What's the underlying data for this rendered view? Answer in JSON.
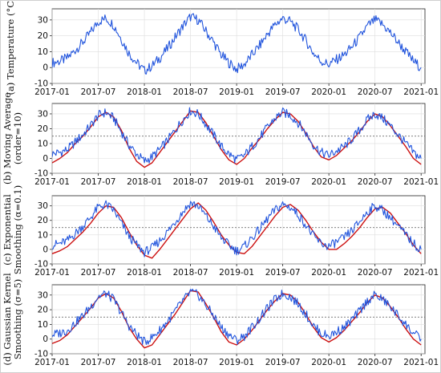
{
  "chart_data": [
    {
      "type": "line",
      "panel": "a",
      "ylabel": [
        "(a) Temperature (°C)"
      ],
      "yticks": [
        -10,
        0,
        10,
        20,
        30
      ],
      "ylim": [
        -10,
        37
      ],
      "xticks": [
        "2017-01",
        "2017-07",
        "2018-01",
        "2018-07",
        "2019-01",
        "2019-07",
        "2020-01",
        "2020-07",
        "2021-01"
      ],
      "xlim": [
        0,
        48.5
      ],
      "grid": true,
      "series": [
        {
          "role": "observed",
          "color": "#2255dd",
          "x": [
            0,
            1,
            2,
            3,
            4,
            5,
            6,
            7,
            8,
            9,
            10,
            11,
            12,
            13,
            14,
            15,
            16,
            17,
            18,
            19,
            20,
            21,
            22,
            23,
            24,
            25,
            26,
            27,
            28,
            29,
            30,
            31,
            32,
            33,
            34,
            35,
            36,
            37,
            38,
            39,
            40,
            41,
            42,
            43,
            44,
            45,
            46,
            47,
            48
          ],
          "values": [
            3,
            4,
            6,
            11,
            16,
            22,
            29,
            31,
            27,
            18,
            9,
            3,
            -2,
            1,
            6,
            12,
            19,
            26,
            32,
            30,
            23,
            16,
            8,
            3,
            -1,
            2,
            8,
            14,
            21,
            27,
            31,
            29,
            24,
            17,
            9,
            4,
            2,
            5,
            8,
            13,
            19,
            26,
            30,
            27,
            22,
            16,
            10,
            4,
            0
          ]
        }
      ]
    },
    {
      "type": "line",
      "panel": "b",
      "ylabel": [
        "(b) Moving Average",
        "(order=10)"
      ],
      "yticks": [
        -10,
        0,
        10,
        20,
        30
      ],
      "ylim": [
        -10,
        37
      ],
      "threshold": 15,
      "xticks": [
        "2017-01",
        "2017-07",
        "2018-01",
        "2018-07",
        "2019-01",
        "2019-07",
        "2020-01",
        "2020-07",
        "2021-01"
      ],
      "xlim": [
        0,
        48.5
      ],
      "grid": true,
      "series": [
        {
          "role": "observed",
          "color": "#2255dd",
          "x": [
            0,
            1,
            2,
            3,
            4,
            5,
            6,
            7,
            8,
            9,
            10,
            11,
            12,
            13,
            14,
            15,
            16,
            17,
            18,
            19,
            20,
            21,
            22,
            23,
            24,
            25,
            26,
            27,
            28,
            29,
            30,
            31,
            32,
            33,
            34,
            35,
            36,
            37,
            38,
            39,
            40,
            41,
            42,
            43,
            44,
            45,
            46,
            47,
            48
          ],
          "values": [
            3,
            4,
            6,
            11,
            16,
            22,
            29,
            31,
            27,
            18,
            9,
            3,
            -2,
            1,
            6,
            12,
            19,
            26,
            32,
            30,
            23,
            16,
            8,
            3,
            -1,
            2,
            8,
            14,
            21,
            27,
            31,
            29,
            24,
            17,
            9,
            4,
            2,
            5,
            8,
            13,
            19,
            26,
            30,
            27,
            22,
            16,
            10,
            4,
            0
          ]
        },
        {
          "role": "smoothed",
          "color": "#cc1111",
          "x": [
            0,
            1,
            2,
            3,
            4,
            5,
            6,
            7,
            8,
            9,
            10,
            11,
            12,
            13,
            14,
            15,
            16,
            17,
            18,
            19,
            20,
            21,
            22,
            23,
            24,
            25,
            26,
            27,
            28,
            29,
            30,
            31,
            32,
            33,
            34,
            35,
            36,
            37,
            38,
            39,
            40,
            41,
            42,
            43,
            44,
            45,
            46,
            47,
            48
          ],
          "values": [
            -3,
            0,
            4,
            10,
            15,
            21,
            28,
            31,
            28,
            19,
            7,
            -2,
            -6,
            -3,
            4,
            11,
            18,
            25,
            32,
            31,
            24,
            15,
            6,
            -1,
            -4,
            0,
            7,
            13,
            20,
            26,
            31,
            30,
            25,
            17,
            8,
            1,
            -1,
            2,
            7,
            12,
            18,
            25,
            30,
            28,
            22,
            15,
            8,
            0,
            -4
          ]
        }
      ]
    },
    {
      "type": "line",
      "panel": "c",
      "ylabel": [
        "(c) Exponential",
        "Smoothing (α=0.1)"
      ],
      "yticks": [
        -10,
        0,
        10,
        20,
        30
      ],
      "ylim": [
        -10,
        37
      ],
      "threshold": 15,
      "xticks": [
        "2017-01",
        "2017-07",
        "2018-01",
        "2018-07",
        "2019-01",
        "2019-07",
        "2020-01",
        "2020-07",
        "2021-01"
      ],
      "xlim": [
        0,
        48.5
      ],
      "grid": true,
      "series": [
        {
          "role": "observed",
          "color": "#2255dd",
          "x": [
            0,
            1,
            2,
            3,
            4,
            5,
            6,
            7,
            8,
            9,
            10,
            11,
            12,
            13,
            14,
            15,
            16,
            17,
            18,
            19,
            20,
            21,
            22,
            23,
            24,
            25,
            26,
            27,
            28,
            29,
            30,
            31,
            32,
            33,
            34,
            35,
            36,
            37,
            38,
            39,
            40,
            41,
            42,
            43,
            44,
            45,
            46,
            47,
            48
          ],
          "values": [
            3,
            4,
            6,
            11,
            16,
            22,
            29,
            31,
            27,
            18,
            9,
            3,
            -2,
            1,
            6,
            12,
            19,
            26,
            32,
            30,
            23,
            16,
            8,
            3,
            -1,
            2,
            8,
            14,
            21,
            27,
            31,
            29,
            24,
            17,
            9,
            4,
            2,
            5,
            8,
            13,
            19,
            26,
            30,
            27,
            22,
            16,
            10,
            4,
            0
          ]
        },
        {
          "role": "smoothed",
          "color": "#cc1111",
          "x": [
            0,
            1,
            2,
            3,
            4,
            5,
            6,
            7,
            8,
            9,
            10,
            11,
            12,
            13,
            14,
            15,
            16,
            17,
            18,
            19,
            20,
            21,
            22,
            23,
            24,
            25,
            26,
            27,
            28,
            29,
            30,
            31,
            32,
            33,
            34,
            35,
            36,
            37,
            38,
            39,
            40,
            41,
            42,
            43,
            44,
            45,
            46,
            47,
            48
          ],
          "values": [
            -3,
            -1,
            2,
            7,
            12,
            18,
            25,
            30,
            29,
            22,
            12,
            3,
            -4,
            -6,
            0,
            7,
            14,
            21,
            28,
            32,
            27,
            19,
            10,
            3,
            -2,
            -3,
            2,
            9,
            16,
            23,
            29,
            31,
            27,
            20,
            12,
            5,
            0,
            0,
            4,
            9,
            15,
            22,
            28,
            29,
            25,
            18,
            11,
            3,
            -3
          ]
        }
      ]
    },
    {
      "type": "line",
      "panel": "d",
      "ylabel": [
        "(d) Gaussian Kernel",
        "Smoothing (σ=5)"
      ],
      "yticks": [
        -10,
        0,
        10,
        20,
        30
      ],
      "ylim": [
        -10,
        37
      ],
      "threshold": 15,
      "xticks": [
        "2017-01",
        "2017-07",
        "2018-01",
        "2018-07",
        "2019-01",
        "2019-07",
        "2020-01",
        "2020-07",
        "2021-01"
      ],
      "xlim": [
        0,
        48.5
      ],
      "grid": true,
      "series": [
        {
          "role": "observed",
          "color": "#2255dd",
          "x": [
            0,
            1,
            2,
            3,
            4,
            5,
            6,
            7,
            8,
            9,
            10,
            11,
            12,
            13,
            14,
            15,
            16,
            17,
            18,
            19,
            20,
            21,
            22,
            23,
            24,
            25,
            26,
            27,
            28,
            29,
            30,
            31,
            32,
            33,
            34,
            35,
            36,
            37,
            38,
            39,
            40,
            41,
            42,
            43,
            44,
            45,
            46,
            47,
            48
          ],
          "values": [
            3,
            4,
            6,
            11,
            16,
            22,
            29,
            31,
            27,
            18,
            9,
            3,
            -2,
            1,
            6,
            12,
            19,
            26,
            32,
            30,
            23,
            16,
            8,
            3,
            -1,
            2,
            8,
            14,
            21,
            27,
            31,
            29,
            24,
            17,
            9,
            4,
            2,
            5,
            8,
            13,
            19,
            26,
            30,
            27,
            22,
            16,
            10,
            4,
            0
          ]
        },
        {
          "role": "smoothed",
          "color": "#cc1111",
          "x": [
            0,
            1,
            2,
            3,
            4,
            5,
            6,
            7,
            8,
            9,
            10,
            11,
            12,
            13,
            14,
            15,
            16,
            17,
            18,
            19,
            20,
            21,
            22,
            23,
            24,
            25,
            26,
            27,
            28,
            29,
            30,
            31,
            32,
            33,
            34,
            35,
            36,
            37,
            38,
            39,
            40,
            41,
            42,
            43,
            44,
            45,
            46,
            47,
            48
          ],
          "values": [
            -3,
            -1,
            3,
            9,
            15,
            21,
            28,
            31,
            28,
            19,
            8,
            0,
            -6,
            -4,
            3,
            10,
            17,
            25,
            33,
            32,
            24,
            15,
            5,
            -2,
            -4,
            0,
            6,
            13,
            20,
            26,
            31,
            30,
            25,
            17,
            8,
            1,
            -2,
            1,
            6,
            12,
            18,
            25,
            30,
            28,
            22,
            15,
            7,
            0,
            -4
          ]
        }
      ]
    }
  ]
}
